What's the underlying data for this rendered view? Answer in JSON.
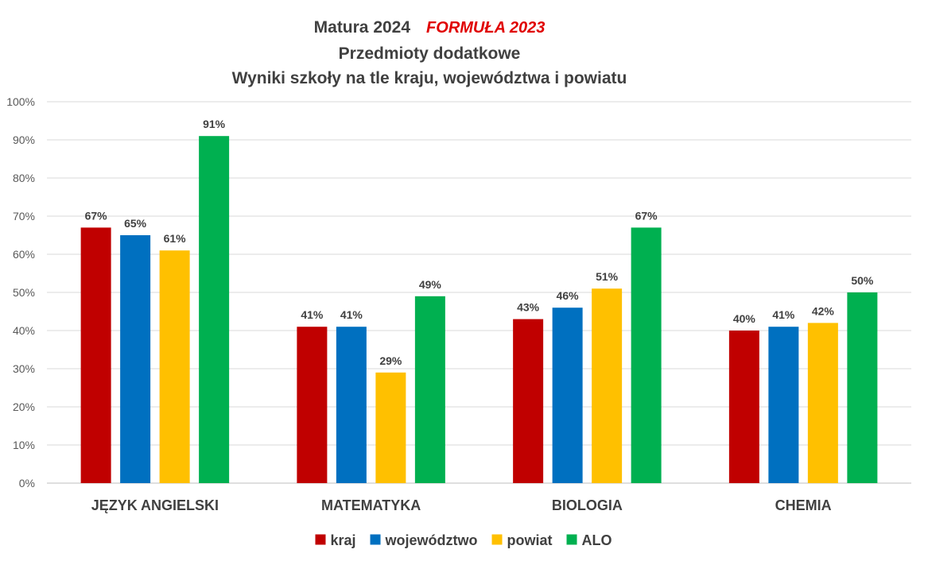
{
  "chart_data": {
    "type": "bar",
    "title": {
      "main": "Matura 2024",
      "accent": "FORMUŁA 2023",
      "line2": "Przedmioty dodatkowe",
      "line3": "Wyniki szkoły na tle kraju, województwa i powiatu"
    },
    "categories": [
      "JĘZYK ANGIELSKI",
      "MATEMATYKA",
      "BIOLOGIA",
      "CHEMIA"
    ],
    "series": [
      {
        "name": "kraj",
        "color": "#c00000",
        "values": [
          67,
          41,
          43,
          40
        ],
        "labels": [
          "67%",
          "41%",
          "43%",
          "40%"
        ]
      },
      {
        "name": "województwo",
        "color": "#0070c0",
        "values": [
          65,
          41,
          46,
          41
        ],
        "labels": [
          "65%",
          "41%",
          "46%",
          "41%"
        ]
      },
      {
        "name": "powiat",
        "color": "#ffc000",
        "values": [
          61,
          29,
          51,
          42
        ],
        "labels": [
          "61%",
          "29%",
          "51%",
          "42%"
        ]
      },
      {
        "name": "ALO",
        "color": "#00b050",
        "values": [
          91,
          49,
          67,
          50
        ],
        "labels": [
          "91%",
          "49%",
          "67%",
          "50%"
        ]
      }
    ],
    "y_ticks": [
      "0%",
      "10%",
      "20%",
      "30%",
      "40%",
      "50%",
      "60%",
      "70%",
      "80%",
      "90%",
      "100%"
    ],
    "ylim": [
      0,
      100
    ],
    "grid": true,
    "legend_position": "bottom",
    "text_color": "#404040",
    "grid_color": "#d9d9d9"
  }
}
